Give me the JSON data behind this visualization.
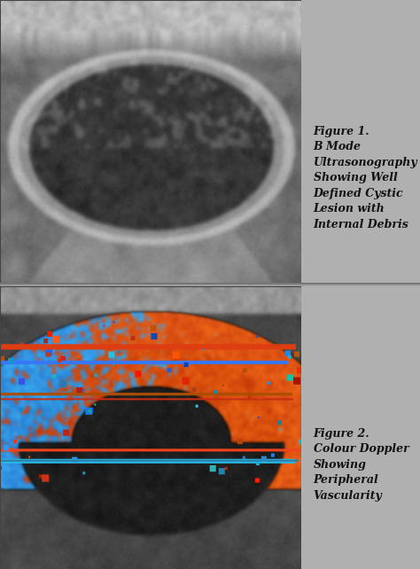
{
  "fig_width": 4.74,
  "fig_height": 6.42,
  "dpi": 100,
  "bg_color": "#a0a0a0",
  "panel_bg_color": "#b0b0b0",
  "sep_color": "#888888",
  "figure1_caption": "Figure 1.\nB Mode\nUltrasonography\nShowing Well\nDefined Cystic\nLesion with\nInternal Debris",
  "figure2_caption": "Figure 2.\nColour Doppler\nShowing\nPeripheral\nVascularity",
  "caption_fontsize": 9,
  "caption_color": "#111111"
}
